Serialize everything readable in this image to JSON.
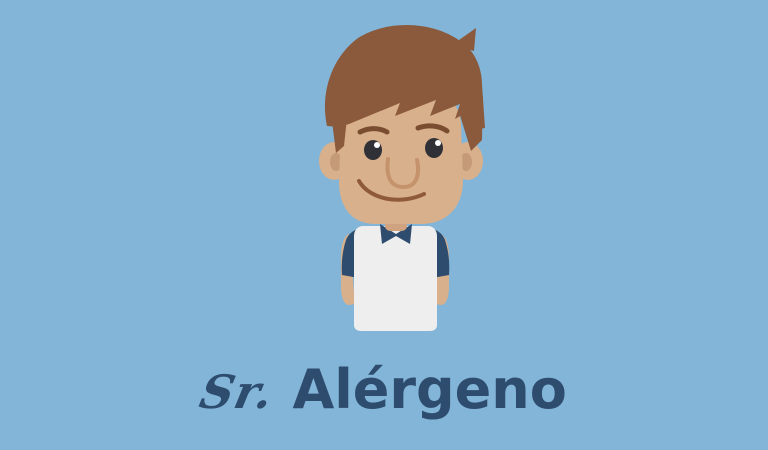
{
  "logo": {
    "prefix": "Sr.",
    "name": "Alérgeno"
  },
  "colors": {
    "background": "#82b5d8",
    "text": "#2e4c6d",
    "hair": "#8b5a3c",
    "skin": "#d9b08c",
    "shirt": "#eeeeee",
    "sleeves": "#2e4c6d"
  }
}
